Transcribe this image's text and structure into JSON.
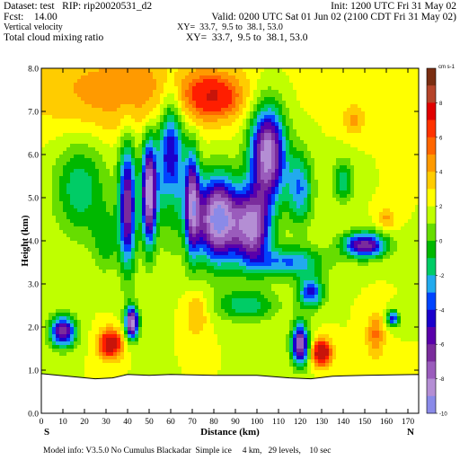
{
  "header": {
    "dataset": "Dataset: test   RIP: rip20020531_d2",
    "init": "Init: 1200 UTC Fri 31 May 02",
    "fcst": "Fcst:    14.00",
    "valid": "Valid: 0200 UTC Sat 01 Jun 02 (2100 CDT Fri 31 May 02)",
    "field1": "Vertical velocity",
    "field1_xy": "XY=  33.7,  9.5 to  38.1, 53.0",
    "field2": "Total cloud mixing ratio",
    "field2_xy": "XY=  33.7,  9.5 to  38.1, 53.0"
  },
  "footer": {
    "model_info": "Model info: V3.5.0 No Cumulus Blackadar  Simple ice     4 km,   29 levels,    10 sec"
  },
  "chart_data": {
    "type": "heatmap",
    "xlabel": "Distance (km)",
    "ylabel": "Height (km)",
    "xlim": [
      0,
      175
    ],
    "ylim": [
      0,
      8.0
    ],
    "x_ticks": [
      0,
      10,
      20,
      30,
      40,
      50,
      60,
      70,
      80,
      90,
      100,
      110,
      120,
      130,
      140,
      150,
      160,
      170
    ],
    "y_ticks": [
      "0.0",
      "1.0",
      "2.0",
      "3.0",
      "4.0",
      "5.0",
      "6.0",
      "7.0",
      "8.0"
    ],
    "left_endpoint_label": "S",
    "right_endpoint_label": "N",
    "colorbar": {
      "units_label": "cm s-1",
      "tick_labels": [
        "8",
        "6",
        "4",
        "2",
        "0",
        "-2",
        "-4",
        "-6",
        "-8",
        "-10"
      ],
      "colors": [
        "#7a2e12",
        "#b5442a",
        "#e00000",
        "#ff3300",
        "#ff6600",
        "#ff9a00",
        "#ffcc00",
        "#ffff00",
        "#bfff00",
        "#66dd00",
        "#00b800",
        "#00cc66",
        "#22aaee",
        "#0044ff",
        "#1a00cc",
        "#5a00aa",
        "#7a2c9c",
        "#9a5cbc",
        "#b48ed4",
        "#8a8ae8"
      ]
    },
    "terrain_km": [
      [
        0,
        0.92
      ],
      [
        25,
        0.8
      ],
      [
        33,
        0.82
      ],
      [
        40,
        0.9
      ],
      [
        50,
        0.88
      ],
      [
        60,
        0.9
      ],
      [
        80,
        0.88
      ],
      [
        100,
        0.88
      ],
      [
        115,
        0.82
      ],
      [
        125,
        0.8
      ],
      [
        135,
        0.86
      ],
      [
        150,
        0.88
      ],
      [
        175,
        0.9
      ]
    ]
  }
}
